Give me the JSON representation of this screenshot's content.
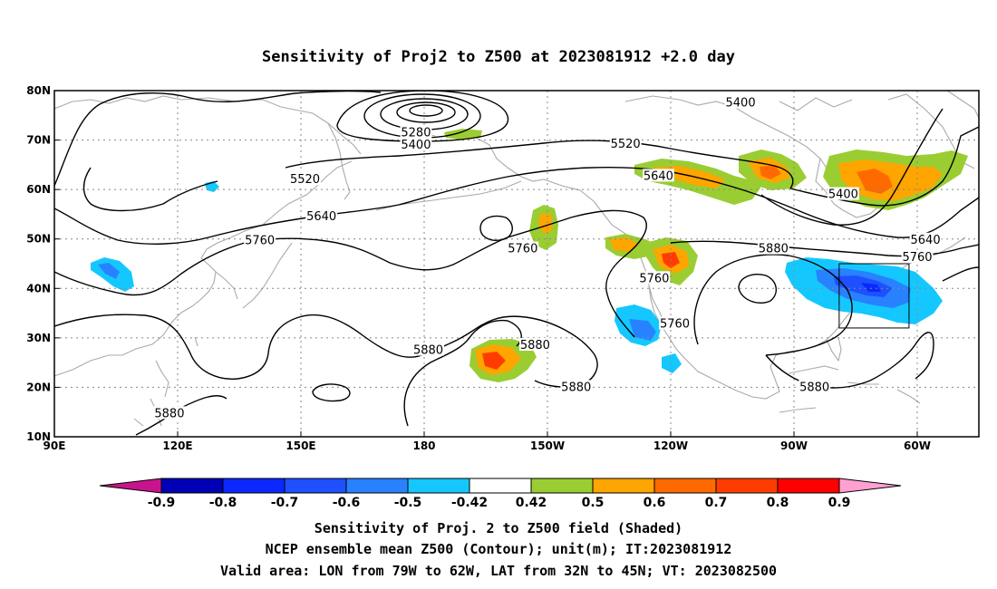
{
  "title": "Sensitivity of Proj2 to Z500 at 2023081912 +2.0 day",
  "lon_ticks": [
    "90E",
    "120E",
    "150E",
    "180",
    "150W",
    "120W",
    "90W",
    "60W"
  ],
  "lat_ticks": [
    "80N",
    "70N",
    "60N",
    "50N",
    "40N",
    "30N",
    "20N",
    "10N"
  ],
  "contour_labels": [
    {
      "text": "5400",
      "lon": 257,
      "lat": 77.5
    },
    {
      "text": "5280",
      "lon": 178,
      "lat": 71.5
    },
    {
      "text": "5400",
      "lon": 178,
      "lat": 69.0
    },
    {
      "text": "5520",
      "lon": 229,
      "lat": 69.2
    },
    {
      "text": "5520",
      "lon": 151,
      "lat": 62.0
    },
    {
      "text": "5640",
      "lon": 237,
      "lat": 62.7
    },
    {
      "text": "5400",
      "lon": 282,
      "lat": 59.0
    },
    {
      "text": "5640",
      "lon": 155,
      "lat": 54.5
    },
    {
      "text": "5760",
      "lon": 140,
      "lat": 49.7
    },
    {
      "text": "5760",
      "lon": 204,
      "lat": 48.0
    },
    {
      "text": "5880",
      "lon": 265,
      "lat": 48.0
    },
    {
      "text": "5640",
      "lon": 302,
      "lat": 49.8
    },
    {
      "text": "5760",
      "lon": 300,
      "lat": 46.3
    },
    {
      "text": "5760",
      "lon": 236,
      "lat": 42.0
    },
    {
      "text": "5760",
      "lon": 241,
      "lat": 32.8
    },
    {
      "text": "5880",
      "lon": 181,
      "lat": 27.5
    },
    {
      "text": "5880",
      "lon": 207,
      "lat": 28.5
    },
    {
      "text": "5880",
      "lon": 217,
      "lat": 20.0
    },
    {
      "text": "5880",
      "lon": 275,
      "lat": 20.0
    },
    {
      "text": "5880",
      "lon": 118,
      "lat": 14.7
    }
  ],
  "colorbar": {
    "labels": [
      "-0.9",
      "-0.8",
      "-0.7",
      "-0.6",
      "-0.5",
      "-0.42",
      "0.42",
      "0.5",
      "0.6",
      "0.7",
      "0.8",
      "0.9"
    ],
    "colors": [
      "#0000b4",
      "#0a28ff",
      "#1e50ff",
      "#2882ff",
      "#14c8ff",
      "#ffffff",
      "#9acd32",
      "#ffa500",
      "#ff6a00",
      "#ff3c00",
      "#ff0000"
    ],
    "low_extend_color": "#c8148c",
    "high_extend_color": "#ffa0d2"
  },
  "footer": [
    "Sensitivity of Proj. 2 to Z500 field (Shaded)",
    "NCEP ensemble mean Z500 (Contour); unit(m); IT:2023081912",
    "Valid area: LON from 79W to 62W, LAT from 32N to 45N; VT: 2023082500"
  ],
  "valid_box": {
    "lon_min": 281,
    "lon_max": 298,
    "lat_min": 32,
    "lat_max": 45
  },
  "map_extent": {
    "lon_min": 90,
    "lon_max": 315,
    "lat_min": 10,
    "lat_max": 80
  }
}
